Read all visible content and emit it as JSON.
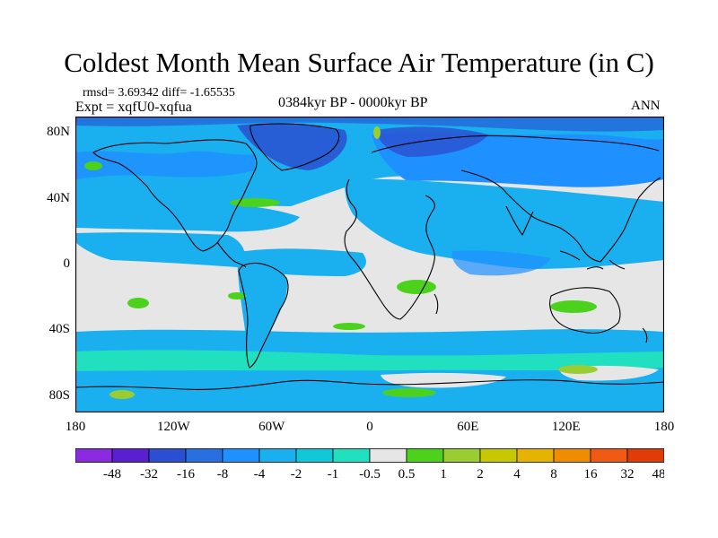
{
  "title": "Coldest Month Mean Surface Air Temperature (in C)",
  "stats_line": "rmsd= 3.69342 diff= -1.65535",
  "expt_line": "Expt = xqfU0-xqfua",
  "period_line": "0384kyr BP - 0000kyr BP",
  "season_label": "ANN",
  "lat_ticks": [
    {
      "label": "80N",
      "lat": 80
    },
    {
      "label": "40N",
      "lat": 40
    },
    {
      "label": "0",
      "lat": 0
    },
    {
      "label": "40S",
      "lat": -40
    },
    {
      "label": "80S",
      "lat": -80
    }
  ],
  "lon_ticks": [
    {
      "label": "180",
      "lon": -180
    },
    {
      "label": "120W",
      "lon": -120
    },
    {
      "label": "60W",
      "lon": -60
    },
    {
      "label": "0",
      "lon": 0
    },
    {
      "label": "60E",
      "lon": 60
    },
    {
      "label": "120E",
      "lon": 120
    },
    {
      "label": "180",
      "lon": 180
    }
  ],
  "colorbar": {
    "colors": [
      "#8a2be2",
      "#5a1fd0",
      "#2a4fd0",
      "#2a6fe0",
      "#1e90ff",
      "#1ab0f0",
      "#10c8d8",
      "#20e0c0",
      "#e6e6e6",
      "#4cd21c",
      "#9acd32",
      "#c8c800",
      "#e6b400",
      "#f08c00",
      "#f05a14",
      "#e03c0a"
    ],
    "labels": [
      "-48",
      "-32",
      "-16",
      "-8",
      "-4",
      "-2",
      "-1",
      "-0.5",
      "0.5",
      "1",
      "2",
      "4",
      "8",
      "16",
      "32",
      "48"
    ]
  },
  "field_colors": {
    "neutral": "#e6e6e6",
    "cool_light": "#1ab0f0",
    "cool_mid": "#1e90ff",
    "cool_dark": "#2a4fd0",
    "teal": "#20e0c0",
    "green": "#4cd21c",
    "yellow_green": "#9acd32",
    "coast": "#000000"
  }
}
